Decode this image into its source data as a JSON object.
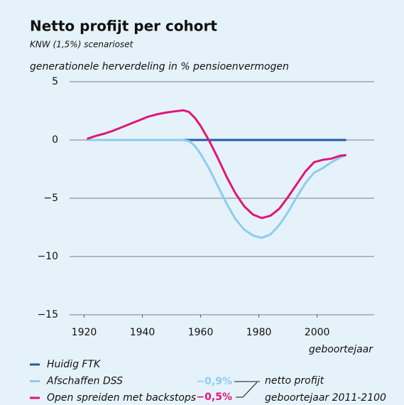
{
  "chart_data": {
    "type": "line",
    "title": "Netto profijt per cohort",
    "subtitle": "KNW (1,5%) scenarioset",
    "y_label": "generationele herverdeling in % pensioenvermogen",
    "x_label": "geboortejaar",
    "x": [
      1921,
      1924,
      1927,
      1930,
      1933,
      1936,
      1939,
      1942,
      1945,
      1948,
      1951,
      1954,
      1956,
      1958,
      1960,
      1963,
      1966,
      1969,
      1972,
      1975,
      1978,
      1981,
      1984,
      1987,
      1990,
      1993,
      1996,
      1999,
      2002,
      2005,
      2008,
      2010
    ],
    "series": [
      {
        "name": "Huidig FTK",
        "color": "#1f5fa0",
        "values": [
          0,
          0,
          0,
          0,
          0,
          0,
          0,
          0,
          0,
          0,
          0,
          0,
          0,
          0,
          0,
          0,
          0,
          0,
          0,
          0,
          0,
          0,
          0,
          0,
          0,
          0,
          0,
          0,
          0,
          0,
          0,
          0
        ]
      },
      {
        "name": "Afschaffen DSS",
        "color": "#8ccdf0",
        "values": [
          0,
          0,
          0,
          0,
          0,
          0,
          0,
          0,
          0,
          0,
          0,
          0,
          -0.1,
          -0.5,
          -1.2,
          -2.5,
          -4,
          -5.5,
          -6.8,
          -7.7,
          -8.2,
          -8.4,
          -8.1,
          -7.3,
          -6.2,
          -4.9,
          -3.7,
          -2.8,
          -2.4,
          -1.9,
          -1.5,
          -1.3
        ]
      },
      {
        "name": "Open spreiden met backstops",
        "color": "#e0157a",
        "values": [
          0.1,
          0.35,
          0.55,
          0.8,
          1.1,
          1.4,
          1.7,
          2.0,
          2.2,
          2.35,
          2.45,
          2.55,
          2.4,
          1.9,
          1.2,
          -0.1,
          -1.6,
          -3.2,
          -4.6,
          -5.7,
          -6.4,
          -6.7,
          -6.5,
          -5.9,
          -4.9,
          -3.8,
          -2.7,
          -1.9,
          -1.7,
          -1.6,
          -1.35,
          -1.3
        ]
      }
    ],
    "annotations": [
      {
        "text": "−0,9%",
        "color": "#8ccdf0"
      },
      {
        "text": "−0,5%",
        "color": "#e0157a"
      }
    ],
    "annotation_note": [
      "netto profijt",
      "geboortejaar 2011-2100"
    ],
    "xlim": [
      1915,
      2019.6
    ],
    "xticks": [
      1920,
      1940,
      1960,
      1980,
      2000
    ],
    "ylim": [
      -15,
      5
    ],
    "yticks": [
      {
        "value": -15,
        "label": "−15"
      },
      {
        "value": -10,
        "label": "−10"
      },
      {
        "value": -5,
        "label": "−5"
      },
      0,
      5
    ],
    "grid": true
  }
}
